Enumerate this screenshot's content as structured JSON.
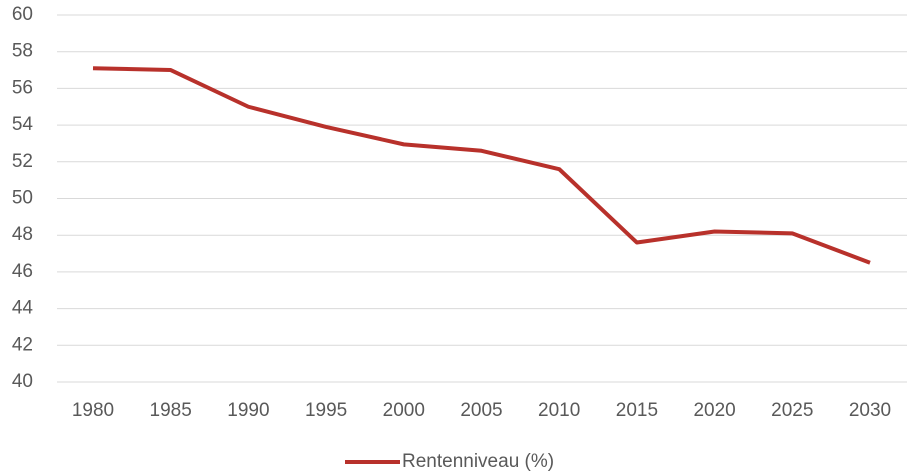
{
  "chart_data": {
    "type": "line",
    "categories": [
      "1980",
      "1985",
      "1990",
      "1995",
      "2000",
      "2005",
      "2010",
      "2015",
      "2020",
      "2025",
      "2030"
    ],
    "series": [
      {
        "name": "Rentenniveau (%)",
        "color": "#b8312b",
        "values": [
          57.1,
          57.0,
          55.0,
          53.9,
          52.95,
          52.6,
          51.6,
          47.6,
          48.2,
          48.1,
          46.5
        ]
      }
    ],
    "ylim": [
      40,
      60
    ],
    "yticks": [
      40,
      42,
      44,
      46,
      48,
      50,
      52,
      54,
      56,
      58,
      60
    ],
    "grid": true,
    "legend": "bottom"
  }
}
